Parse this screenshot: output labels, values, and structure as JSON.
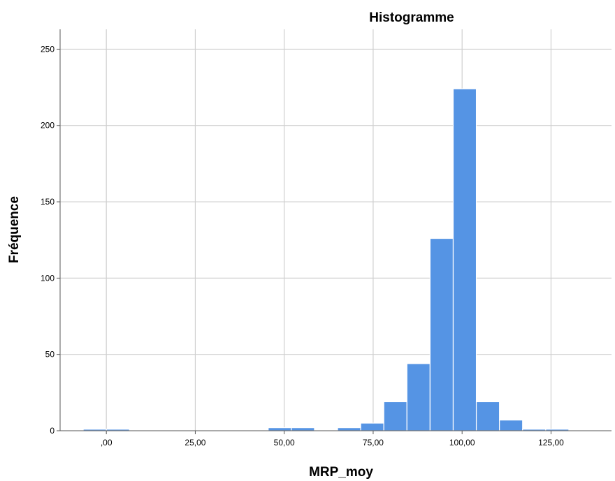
{
  "chart_data": {
    "type": "bar",
    "title": "Histogramme",
    "xlabel": "MRP_moy",
    "ylabel": "Fréquence",
    "xlim": [
      -13,
      142
    ],
    "ylim": [
      0,
      263
    ],
    "grid": true,
    "bar_color": "#5594e4",
    "x_ticks": [
      {
        "value": 0,
        "label": ",00"
      },
      {
        "value": 25,
        "label": "25,00"
      },
      {
        "value": 50,
        "label": "50,00"
      },
      {
        "value": 75,
        "label": "75,00"
      },
      {
        "value": 100,
        "label": "100,00"
      },
      {
        "value": 125,
        "label": "125,00"
      }
    ],
    "y_ticks": [
      {
        "value": 0,
        "label": "0"
      },
      {
        "value": 50,
        "label": "50"
      },
      {
        "value": 100,
        "label": "100"
      },
      {
        "value": 150,
        "label": "150"
      },
      {
        "value": 200,
        "label": "200"
      },
      {
        "value": 250,
        "label": "250"
      }
    ],
    "bins": [
      {
        "start": -6.5,
        "end": 0,
        "count": 1
      },
      {
        "start": 0,
        "end": 6.5,
        "count": 1
      },
      {
        "start": 45.5,
        "end": 52,
        "count": 2
      },
      {
        "start": 52,
        "end": 58.5,
        "count": 2
      },
      {
        "start": 65,
        "end": 71.5,
        "count": 2
      },
      {
        "start": 71.5,
        "end": 78,
        "count": 5
      },
      {
        "start": 78,
        "end": 84.5,
        "count": 19
      },
      {
        "start": 84.5,
        "end": 91,
        "count": 44
      },
      {
        "start": 91,
        "end": 97.5,
        "count": 126
      },
      {
        "start": 97.5,
        "end": 104,
        "count": 224
      },
      {
        "start": 104,
        "end": 110.5,
        "count": 19
      },
      {
        "start": 110.5,
        "end": 117,
        "count": 7
      },
      {
        "start": 117,
        "end": 123.5,
        "count": 1
      },
      {
        "start": 123.5,
        "end": 130,
        "count": 1
      }
    ]
  }
}
